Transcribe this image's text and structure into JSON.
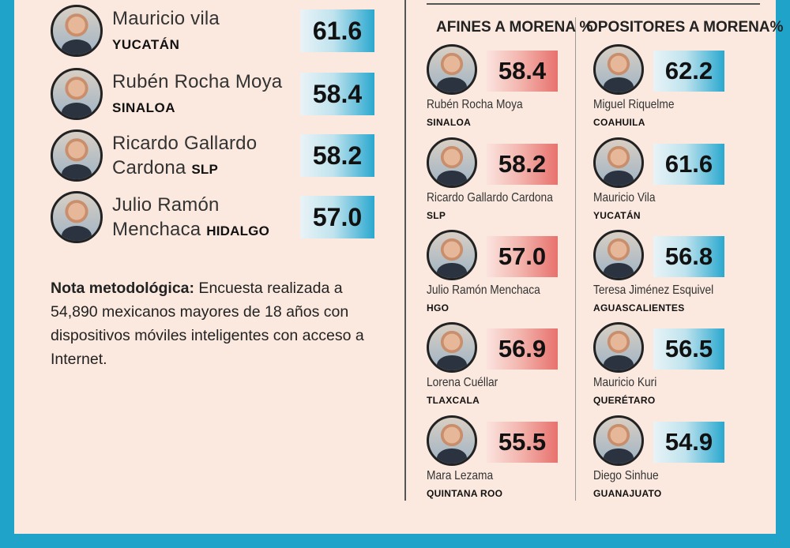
{
  "left_list": [
    {
      "name_line1": "Mauricio vila",
      "name_line2": "",
      "state": "YUCATÁN",
      "score": "61.6"
    },
    {
      "name_line1": "Rubén Rocha Moya",
      "name_line2": "",
      "state": "SINALOA",
      "score": "58.4"
    },
    {
      "name_line1": "Ricardo Gallardo",
      "name_line2": "Cardona",
      "state": "SLP",
      "score": "58.2"
    },
    {
      "name_line1": "Julio Ramón",
      "name_line2": "Menchaca",
      "state": "HIDALGO",
      "score": "57.0"
    }
  ],
  "note": {
    "label": "Nota metodológica:",
    "text": " Encuesta realizada a 54,890 mexicanos mayores de 18 años con dispositivos móviles inteligentes con acceso a Internet."
  },
  "afines": {
    "title": "AFINES A MORENA %",
    "items": [
      {
        "name": "Rubén Rocha Moya",
        "state": "SINALOA",
        "score": "58.4"
      },
      {
        "name": "Ricardo Gallardo Cardona",
        "state": "SLP",
        "score": "58.2"
      },
      {
        "name": "Julio Ramón Menchaca",
        "state": "HGO",
        "score": "57.0"
      },
      {
        "name": "Lorena Cuéllar",
        "state": "TLAXCALA",
        "score": "56.9"
      },
      {
        "name": "Mara Lezama",
        "state": "QUINTANA ROO",
        "score": "55.5"
      }
    ]
  },
  "opositores": {
    "title": "OPOSITORES A MORENA%",
    "items": [
      {
        "name": "Miguel Riquelme",
        "state": "COAHUILA",
        "score": "62.2"
      },
      {
        "name": "Mauricio Vila",
        "state": "YUCATÁN",
        "score": "61.6"
      },
      {
        "name": "Teresa Jiménez Esquivel",
        "state": "AGUASCALIENTES",
        "score": "56.8"
      },
      {
        "name": "Mauricio Kuri",
        "state": "QUERÉTARO",
        "score": "56.5"
      },
      {
        "name": "Diego Sinhue",
        "state": "GUANAJUATO",
        "score": "54.9"
      }
    ]
  },
  "colors": {
    "accent_blue": "#1fa3c8",
    "accent_red": "#e8716d",
    "background": "#fbe9df"
  }
}
